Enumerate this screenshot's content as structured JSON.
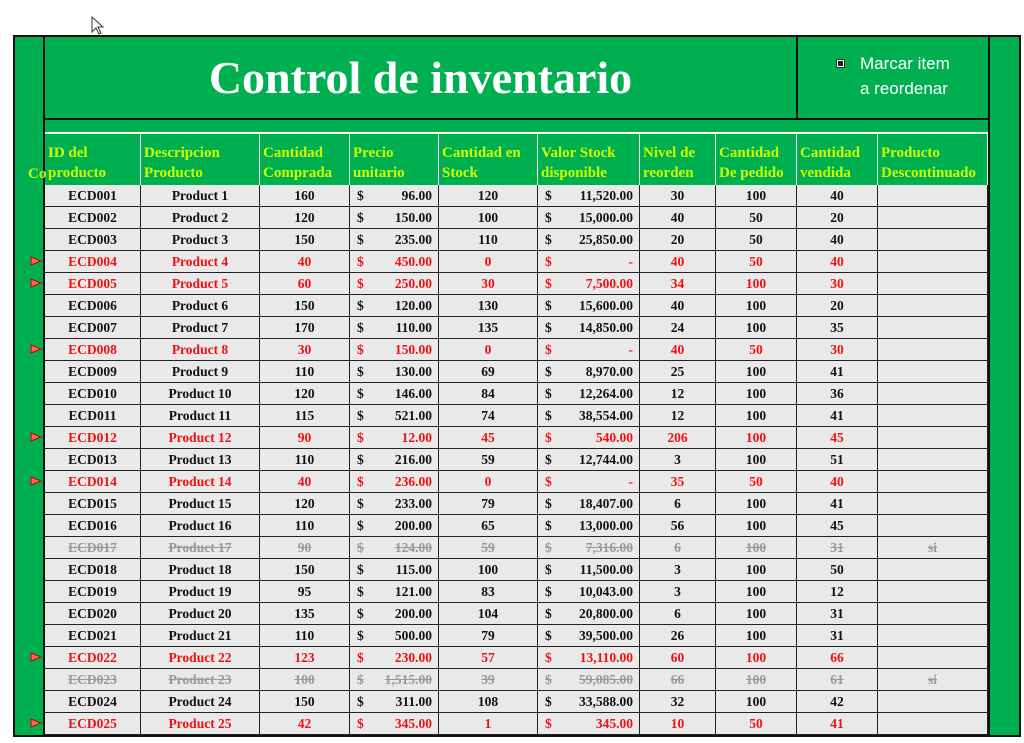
{
  "header": {
    "title": "Control de inventario",
    "checkbox_label": "Marcar item\na reordenar",
    "hidden_column_header": "Co"
  },
  "table": {
    "currency_symbol": "$",
    "columns": [
      "ID del\nproducto",
      "Descripcion\nProducto",
      "Cantidad\nComprada",
      "Precio\nunitario",
      "Cantidad en\nStock",
      "Valor Stock\ndisponible",
      "Nivel de\nreorden",
      "Cantidad\nDe pedido",
      "Cantidad\nvendida",
      "Producto\nDescontinuado"
    ],
    "rows": [
      {
        "status": "normal",
        "cells": [
          "ECD001",
          "Product 1",
          "160",
          "96.00",
          "120",
          "11,520.00",
          "30",
          "100",
          "40"
        ]
      },
      {
        "status": "normal",
        "cells": [
          "ECD002",
          "Product 2",
          "120",
          "150.00",
          "100",
          "15,000.00",
          "40",
          "50",
          "20"
        ]
      },
      {
        "status": "normal",
        "cells": [
          "ECD003",
          "Product 3",
          "150",
          "235.00",
          "110",
          "25,850.00",
          "20",
          "50",
          "40"
        ]
      },
      {
        "status": "reorder",
        "cells": [
          "ECD004",
          "Product 4",
          "40",
          "450.00",
          "0",
          "-",
          "40",
          "50",
          "40"
        ]
      },
      {
        "status": "reorder",
        "cells": [
          "ECD005",
          "Product 5",
          "60",
          "250.00",
          "30",
          "7,500.00",
          "34",
          "100",
          "30"
        ]
      },
      {
        "status": "normal",
        "cells": [
          "ECD006",
          "Product 6",
          "150",
          "120.00",
          "130",
          "15,600.00",
          "40",
          "100",
          "20"
        ]
      },
      {
        "status": "normal",
        "cells": [
          "ECD007",
          "Product 7",
          "170",
          "110.00",
          "135",
          "14,850.00",
          "24",
          "100",
          "35"
        ]
      },
      {
        "status": "reorder",
        "cells": [
          "ECD008",
          "Product 8",
          "30",
          "150.00",
          "0",
          "-",
          "40",
          "50",
          "30"
        ]
      },
      {
        "status": "normal",
        "cells": [
          "ECD009",
          "Product 9",
          "110",
          "130.00",
          "69",
          "8,970.00",
          "25",
          "100",
          "41"
        ]
      },
      {
        "status": "normal",
        "cells": [
          "ECD010",
          "Product 10",
          "120",
          "146.00",
          "84",
          "12,264.00",
          "12",
          "100",
          "36"
        ]
      },
      {
        "status": "normal",
        "cells": [
          "ECD011",
          "Product 11",
          "115",
          "521.00",
          "74",
          "38,554.00",
          "12",
          "100",
          "41"
        ]
      },
      {
        "status": "reorder",
        "cells": [
          "ECD012",
          "Product 12",
          "90",
          "12.00",
          "45",
          "540.00",
          "206",
          "100",
          "45"
        ]
      },
      {
        "status": "normal",
        "cells": [
          "ECD013",
          "Product 13",
          "110",
          "216.00",
          "59",
          "12,744.00",
          "3",
          "100",
          "51"
        ]
      },
      {
        "status": "reorder",
        "cells": [
          "ECD014",
          "Product 14",
          "40",
          "236.00",
          "0",
          "-",
          "35",
          "50",
          "40"
        ]
      },
      {
        "status": "normal",
        "cells": [
          "ECD015",
          "Product 15",
          "120",
          "233.00",
          "79",
          "18,407.00",
          "6",
          "100",
          "41"
        ]
      },
      {
        "status": "normal",
        "cells": [
          "ECD016",
          "Product 16",
          "110",
          "200.00",
          "65",
          "13,000.00",
          "56",
          "100",
          "45"
        ]
      },
      {
        "status": "discontinued",
        "cells": [
          "ECD017",
          "Product 17",
          "90",
          "124.00",
          "59",
          "7,316.00",
          "6",
          "100",
          "31",
          "si"
        ]
      },
      {
        "status": "normal",
        "cells": [
          "ECD018",
          "Product 18",
          "150",
          "115.00",
          "100",
          "11,500.00",
          "3",
          "100",
          "50"
        ]
      },
      {
        "status": "normal",
        "cells": [
          "ECD019",
          "Product 19",
          "95",
          "121.00",
          "83",
          "10,043.00",
          "3",
          "100",
          "12"
        ]
      },
      {
        "status": "normal",
        "cells": [
          "ECD020",
          "Product 20",
          "135",
          "200.00",
          "104",
          "20,800.00",
          "6",
          "100",
          "31"
        ]
      },
      {
        "status": "normal",
        "cells": [
          "ECD021",
          "Product 21",
          "110",
          "500.00",
          "79",
          "39,500.00",
          "26",
          "100",
          "31"
        ]
      },
      {
        "status": "reorder",
        "cells": [
          "ECD022",
          "Product 22",
          "123",
          "230.00",
          "57",
          "13,110.00",
          "60",
          "100",
          "66"
        ]
      },
      {
        "status": "discontinued",
        "cells": [
          "ECD023",
          "Product 23",
          "100",
          "1,515.00",
          "39",
          "59,085.00",
          "66",
          "100",
          "61",
          "si"
        ]
      },
      {
        "status": "normal",
        "cells": [
          "ECD024",
          "Product 24",
          "150",
          "311.00",
          "108",
          "33,588.00",
          "32",
          "100",
          "42"
        ]
      },
      {
        "status": "reorder",
        "cells": [
          "ECD025",
          "Product 25",
          "42",
          "345.00",
          "1",
          "345.00",
          "10",
          "50",
          "41"
        ]
      }
    ]
  }
}
